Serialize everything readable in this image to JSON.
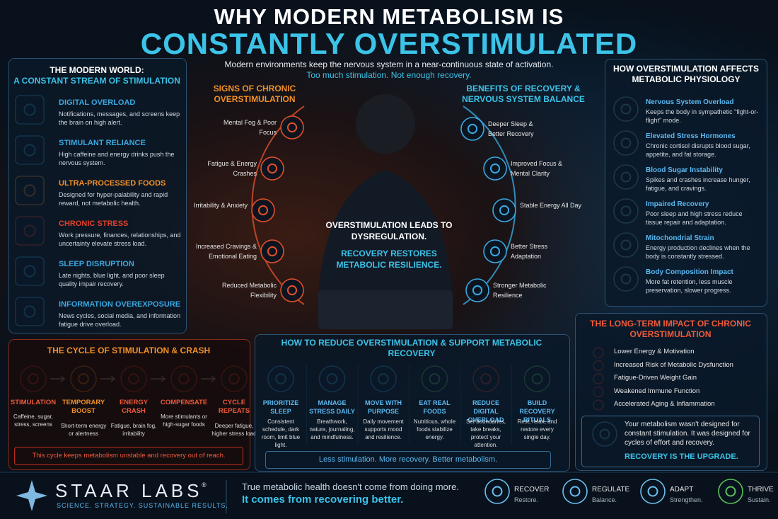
{
  "header": {
    "title": "WHY MODERN METABOLISM IS",
    "highlight": "CONSTANTLY OVERSTIMULATED",
    "subtitle": "Modern environments keep the nervous system in a near-continuous state of activation.",
    "subtitle_emphasis": "Too much stimulation. Not enough recovery."
  },
  "modern_world": {
    "title": "THE MODERN WORLD:",
    "subtitle": "A CONSTANT STREAM OF STIMULATION",
    "items": [
      {
        "title": "DIGITAL OVERLOAD",
        "text": "Notifications, messages, and screens keep the brain on high alert."
      },
      {
        "title": "STIMULANT RELIANCE",
        "text": "High caffeine and energy drinks push the nervous system."
      },
      {
        "title": "ULTRA-PROCESSED FOODS",
        "text": "Designed for hyper-palability and rapid reward, not metabolic health."
      },
      {
        "title": "CHRONIC STRESS",
        "text": "Work pressure, finances, relationships, and uncertainty elevate stress load."
      },
      {
        "title": "SLEEP DISRUPTION",
        "text": "Late nights, blue light, and poor sleep quality impair recovery."
      },
      {
        "title": "INFORMATION OVEREXPOSURE",
        "text": "News cycles, social media, and information fatigue drive overload."
      }
    ]
  },
  "signs": {
    "title": "SIGNS OF CHRONIC OVERSTIMULATION",
    "items": [
      "Mental Fog & Poor Focus",
      "Fatigue & Energy Crashes",
      "Irritability & Anxiety",
      "Increased Cravings & Emotional Eating",
      "Reduced Metabolic Flexibility"
    ]
  },
  "benefits": {
    "title": "BENEFITS OF RECOVERY & NERVOUS SYSTEM BALANCE",
    "items": [
      "Deeper Sleep & Better Recovery",
      "Improved Focus & Mental Clarity",
      "Stable Energy All Day",
      "Better Stress Adaptation",
      "Stronger Metabolic Resilience"
    ]
  },
  "center": {
    "statement": "OVERSTIMULATION LEADS TO DYSREGULATION.",
    "resolution": "RECOVERY RESTORES METABOLIC RESILIENCE."
  },
  "physiology": {
    "title": "HOW OVERSTIMULATION AFFECTS METABOLIC PHYSIOLOGY",
    "items": [
      {
        "title": "Nervous System Overload",
        "text": "Keeps the body in sympathetic \"fight-or-flight\" mode."
      },
      {
        "title": "Elevated Stress Hormones",
        "text": "Chronic cortisol disrupts blood sugar, appetite, and fat storage."
      },
      {
        "title": "Blood Sugar Instability",
        "text": "Spikes and crashes increase hunger, fatigue, and cravings."
      },
      {
        "title": "Impaired Recovery",
        "text": "Poor sleep and high stress reduce tissue repair and adaptation."
      },
      {
        "title": "Mitochondrial Strain",
        "text": "Energy production declines when the body is constantly stressed."
      },
      {
        "title": "Body Composition Impact",
        "text": "More fat retention, less muscle preservation, slower progress."
      }
    ]
  },
  "cycle": {
    "title": "THE CYCLE OF STIMULATION & CRASH",
    "steps": [
      {
        "title": "STIMULATION",
        "text": "Caffeine, sugar, stress, screens"
      },
      {
        "title": "TEMPORARY BOOST",
        "text": "Short-term energy or alertness"
      },
      {
        "title": "ENERGY CRASH",
        "text": "Fatigue, brain fog, irritability"
      },
      {
        "title": "COMPENSATE",
        "text": "More stimulants or high-sugar foods"
      },
      {
        "title": "CYCLE REPEATS",
        "text": "Deeper fatigue, higher stress load"
      }
    ],
    "note": "This cycle keeps metabolism unstable and recovery out of reach."
  },
  "reduce": {
    "title": "HOW TO REDUCE OVERSTIMULATION & SUPPORT METABOLIC RECOVERY",
    "items": [
      {
        "title": "PRIORITIZE SLEEP",
        "text": "Consistent schedule, dark room, limit blue light."
      },
      {
        "title": "MANAGE STRESS DAILY",
        "text": "Breathwork, nature, journaling, and mindfulness."
      },
      {
        "title": "MOVE WITH PURPOSE",
        "text": "Daily movement supports mood and resilience."
      },
      {
        "title": "EAT REAL FOODS",
        "text": "Nutritious, whole foods stabilize energy."
      },
      {
        "title": "REDUCE DIGITAL OVERLOAD",
        "text": "Set boundaries, take breaks, protect your attention."
      },
      {
        "title": "BUILD RECOVERY RITUALS",
        "text": "Rest, relax, and restore every single day."
      }
    ],
    "footer": "Less stimulation. More recovery. Better metabolism."
  },
  "long_term": {
    "title": "THE LONG-TERM IMPACT OF CHRONIC OVERSTIMULATION",
    "items": [
      "Lower Energy & Motivation",
      "Increased Risk of Metabolic Dysfunction",
      "Fatigue-Driven Weight Gain",
      "Weakened Immune Function",
      "Accelerated Aging & Inflammation"
    ],
    "message": "Your metabolism wasn't designed for constant stimulation. It was designed for cycles of effort and recovery.",
    "emphasis": "RECOVERY IS THE UPGRADE."
  },
  "footer": {
    "brand": "STAAR LABS",
    "mark": "®",
    "tagline": "SCIENCE. STRATEGY. SUSTAINABLE RESULTS.",
    "message": "True metabolic health doesn't come from doing more.",
    "emphasis": "It comes from recovering better.",
    "pillars": [
      {
        "title": "RECOVER",
        "text": "Restore."
      },
      {
        "title": "REGULATE",
        "text": "Balance."
      },
      {
        "title": "ADAPT",
        "text": "Strengthen."
      },
      {
        "title": "THRIVE",
        "text": "Sustain."
      }
    ]
  }
}
